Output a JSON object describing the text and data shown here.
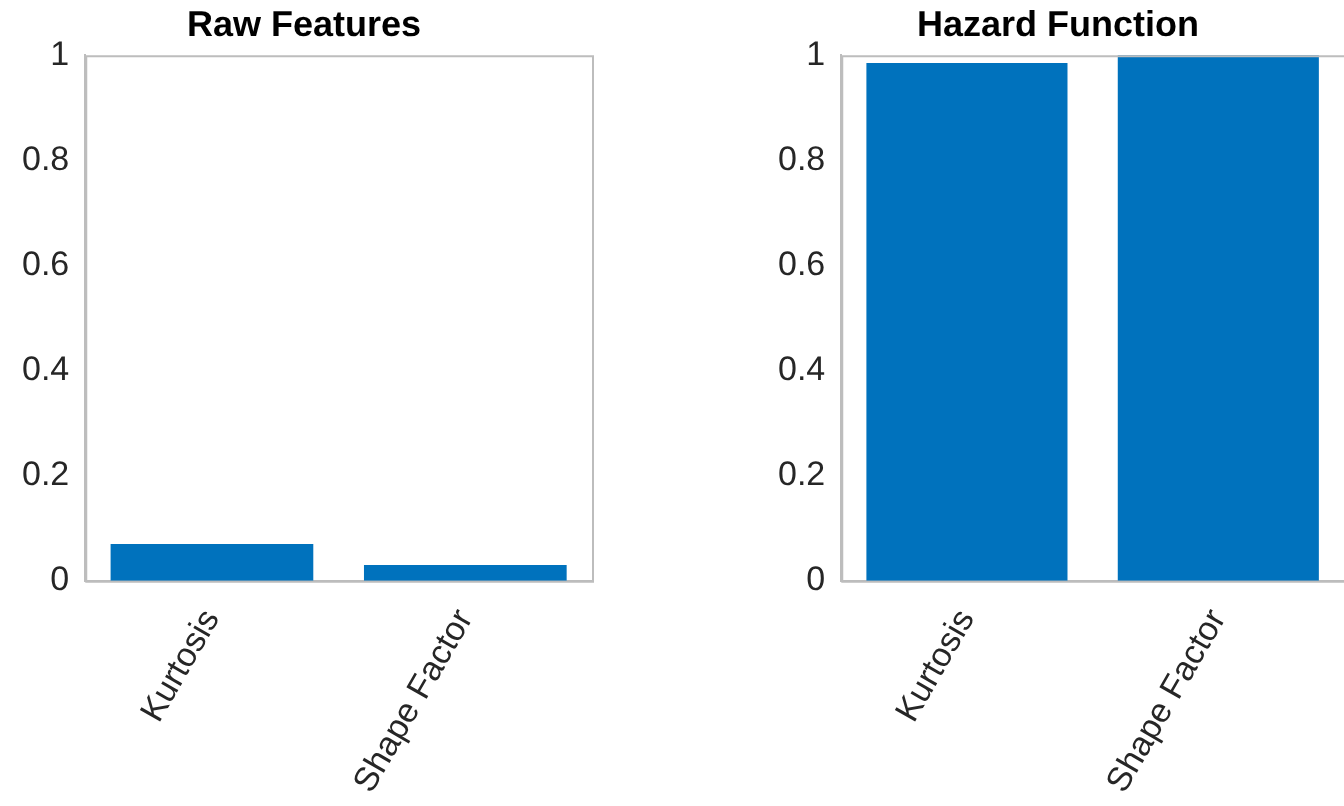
{
  "chart_data": [
    {
      "type": "bar",
      "title": "Raw Features",
      "categories": [
        "Kurtosis",
        "Shape Factor"
      ],
      "values": [
        0.07,
        0.03
      ],
      "color": "#0072bd",
      "ylim": [
        0,
        1
      ],
      "yticks": [
        0,
        0.2,
        0.4,
        0.6,
        0.8,
        1
      ],
      "grid": false,
      "legend": false
    },
    {
      "type": "bar",
      "title": "Hazard Function",
      "categories": [
        "Kurtosis",
        "Shape Factor"
      ],
      "values": [
        0.985,
        1.0
      ],
      "color": "#0072bd",
      "ylim": [
        0,
        1
      ],
      "yticks": [
        0,
        0.2,
        0.4,
        0.6,
        0.8,
        1
      ],
      "grid": false,
      "legend": false
    }
  ]
}
